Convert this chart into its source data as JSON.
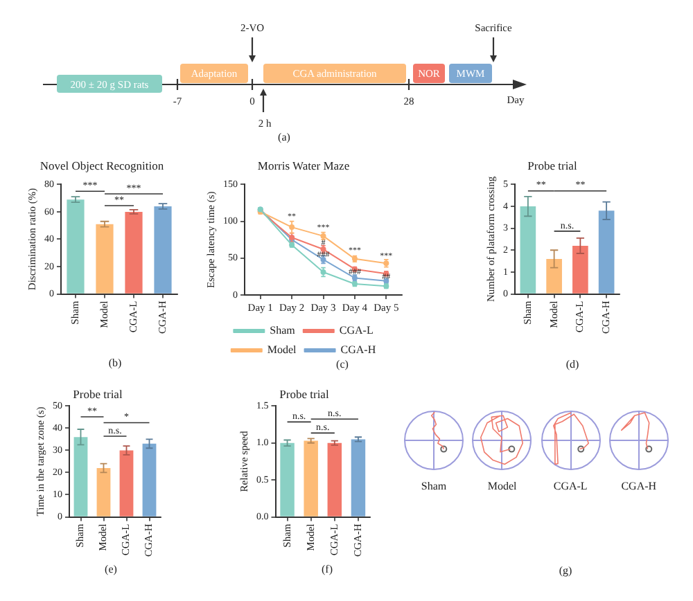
{
  "chart_data": [
    {
      "type": "other",
      "annotations": [
        "200 ± 20 g SD rats",
        "Adaptation",
        "2-VO",
        "CGA administration",
        "NOR",
        "MWM",
        "Sacrifice",
        "-7",
        "0",
        "28",
        "Day",
        "2 h",
        "(a)"
      ]
    },
    {
      "type": "bar",
      "title": "Novel Object Recognition",
      "ylabel": "Discrimination ratio (%)",
      "categories": [
        "Sham",
        "Model",
        "CGA-L",
        "CGA-H"
      ],
      "values": [
        69,
        51,
        60,
        64
      ],
      "errors": [
        2,
        2,
        1.5,
        2
      ],
      "colors": [
        "#8ad0c4",
        "#fdbb77",
        "#f2786a",
        "#7ba9d3"
      ],
      "ylim": [
        0,
        80
      ],
      "yticks": [
        0,
        20,
        40,
        60,
        80
      ],
      "annotations": [
        "***",
        "**",
        "***",
        "(b)"
      ]
    },
    {
      "type": "line",
      "title": "Morris Water Maze",
      "ylabel": "Escape latency time (s)",
      "categories": [
        "Day 1",
        "Day 2",
        "Day 3",
        "Day 4",
        "Day 5"
      ],
      "series": [
        {
          "name": "Sham",
          "color": "#7fcfc0",
          "values": [
            116,
            68,
            31,
            15,
            12
          ],
          "errors": [
            2,
            3,
            6,
            3,
            3
          ]
        },
        {
          "name": "Model",
          "color": "#fdb56e",
          "values": [
            113,
            92,
            80,
            49,
            43
          ],
          "errors": [
            3,
            8,
            5,
            4,
            5
          ]
        },
        {
          "name": "CGA-L",
          "color": "#f27a6c",
          "values": [
            114,
            78,
            62,
            35,
            29
          ],
          "errors": [
            2,
            6,
            5,
            3,
            3
          ]
        },
        {
          "name": "CGA-H",
          "color": "#7aa6d2",
          "values": [
            116,
            75,
            48,
            23,
            19
          ],
          "errors": [
            2,
            5,
            5,
            4,
            3
          ]
        }
      ],
      "ylim": [
        0,
        150
      ],
      "yticks": [
        0,
        50,
        100,
        150
      ],
      "marker": "circle",
      "legend": "bottom",
      "annotations": [
        {
          "text": "**",
          "x": "Day 2",
          "y": 106
        },
        {
          "text": "***",
          "x": "Day 3",
          "y": 91
        },
        {
          "text": "#",
          "x": "Day 3",
          "y": 71
        },
        {
          "text": "###",
          "x": "Day 3",
          "y": 55
        },
        {
          "text": "***",
          "x": "Day 4",
          "y": 60
        },
        {
          "text": "###",
          "x": "Day 4",
          "y": 31
        },
        {
          "text": "***",
          "x": "Day 5",
          "y": 53
        },
        {
          "text": "##",
          "x": "Day 5",
          "y": 25
        },
        "(c)"
      ]
    },
    {
      "type": "bar",
      "title": "Probe trial",
      "ylabel": "Number of plataform crossing",
      "categories": [
        "Sham",
        "Model",
        "CGA-L",
        "CGA-H"
      ],
      "values": [
        4.0,
        1.6,
        2.2,
        3.8
      ],
      "errors": [
        0.45,
        0.4,
        0.35,
        0.4
      ],
      "colors": [
        "#8ad0c4",
        "#fdbb77",
        "#f2786a",
        "#7ba9d3"
      ],
      "ylim": [
        0,
        5
      ],
      "yticks": [
        0,
        1,
        2,
        3,
        4,
        5
      ],
      "annotations": [
        "**",
        "n.s.",
        "**",
        "(d)"
      ]
    },
    {
      "type": "bar",
      "title": "Probe trial",
      "ylabel": "Time in the target zone (s)",
      "categories": [
        "Sham",
        "Model",
        "CGA-L",
        "CGA-H"
      ],
      "values": [
        36,
        22,
        30,
        33
      ],
      "errors": [
        3.5,
        2,
        2,
        2
      ],
      "colors": [
        "#8ad0c4",
        "#fdbb77",
        "#f2786a",
        "#7ba9d3"
      ],
      "ylim": [
        0,
        50
      ],
      "yticks": [
        0,
        10,
        20,
        30,
        40,
        50
      ],
      "annotations": [
        "**",
        "n.s.",
        "*",
        "(e)"
      ]
    },
    {
      "type": "bar",
      "title": "Probe trial",
      "ylabel": "Relative speed",
      "categories": [
        "Sham",
        "Model",
        "CGA-L",
        "CGA-H"
      ],
      "values": [
        1.0,
        1.03,
        1.0,
        1.05
      ],
      "errors": [
        0.04,
        0.03,
        0.03,
        0.03
      ],
      "colors": [
        "#8ad0c4",
        "#fdbb77",
        "#f2786a",
        "#7ba9d3"
      ],
      "ylim": [
        0,
        1.5
      ],
      "yticks": [
        {
          "value": 0,
          "label": "0.0"
        },
        0.5,
        {
          "value": 1,
          "label": "1.0"
        },
        1.5
      ],
      "annotations": [
        "n.s.",
        "n.s.",
        "n.s.",
        "(f)"
      ]
    },
    {
      "type": "other",
      "categories": [
        "Sham",
        "Model",
        "CGA-L",
        "CGA-H"
      ],
      "annotations": [
        "(g)"
      ]
    }
  ]
}
